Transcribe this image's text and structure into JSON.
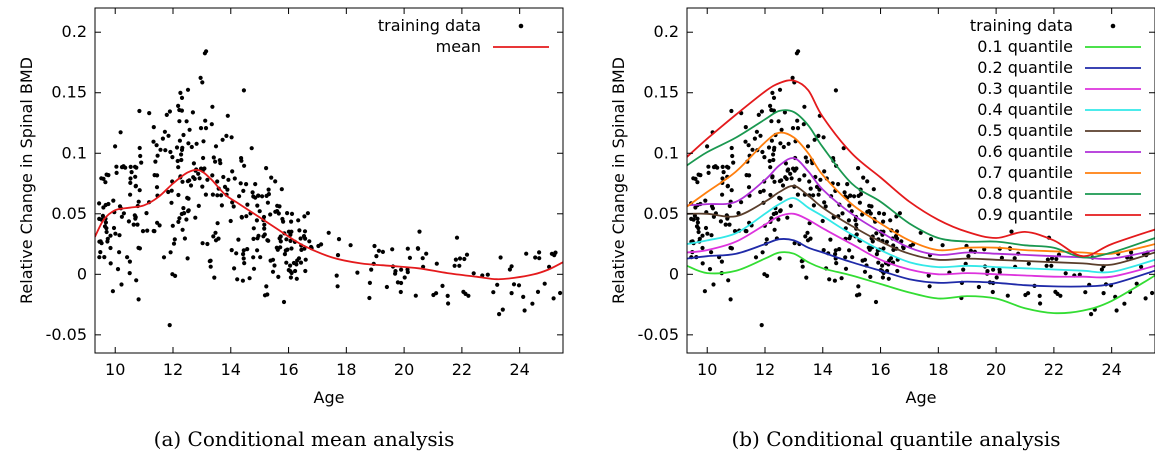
{
  "chart_data": [
    {
      "type": "scatter",
      "caption": "(a) Conditional mean analysis",
      "xlabel": "Age",
      "ylabel": "Relative Change in Spinal BMD",
      "xlim": [
        9.3,
        25.5
      ],
      "ylim": [
        -0.065,
        0.22
      ],
      "xticks": [
        10,
        12,
        14,
        16,
        18,
        20,
        22,
        24
      ],
      "yticks": [
        -0.05,
        0,
        0.05,
        0.1,
        0.15,
        0.2
      ],
      "yticklabels": [
        "-0.05",
        "0",
        "0.05",
        "0.1",
        "0.15",
        "0.2"
      ],
      "grid": false,
      "legend_position": "top-right",
      "scatter_name": "training data",
      "series": [
        {
          "name": "mean",
          "color": "#e41a1c",
          "x": [
            9.3,
            9.6,
            10.0,
            10.5,
            11.0,
            11.5,
            12.0,
            12.5,
            12.9,
            13.3,
            13.8,
            14.3,
            15.0,
            15.7,
            16.5,
            17.5,
            18.5,
            19.5,
            20.5,
            21.5,
            22.5,
            23.2,
            23.8,
            24.5,
            25.0,
            25.5
          ],
          "y": [
            0.031,
            0.045,
            0.053,
            0.055,
            0.057,
            0.064,
            0.075,
            0.084,
            0.086,
            0.079,
            0.066,
            0.058,
            0.047,
            0.036,
            0.024,
            0.014,
            0.009,
            0.007,
            0.005,
            0.001,
            -0.002,
            -0.004,
            -0.003,
            0.0,
            0.004,
            0.01
          ]
        }
      ]
    },
    {
      "type": "scatter",
      "caption": "(b) Conditional quantile analysis",
      "xlabel": "Age",
      "ylabel": "Relative Change in Spinal BMD",
      "xlim": [
        9.3,
        25.5
      ],
      "ylim": [
        -0.065,
        0.22
      ],
      "xticks": [
        10,
        12,
        14,
        16,
        18,
        20,
        22,
        24
      ],
      "yticks": [
        -0.05,
        0,
        0.05,
        0.1,
        0.15,
        0.2
      ],
      "yticklabels": [
        "-0.05",
        "0",
        "0.05",
        "0.1",
        "0.15",
        "0.2"
      ],
      "grid": false,
      "legend_position": "top-right",
      "scatter_name": "training data",
      "quantile_x": [
        9.3,
        10.0,
        11.0,
        12.0,
        12.5,
        13.0,
        13.5,
        14.0,
        15.0,
        16.0,
        17.0,
        18.0,
        19.0,
        20.0,
        21.0,
        22.0,
        23.0,
        24.0,
        25.5
      ],
      "series": [
        {
          "name": "0.1 quantile",
          "color": "#33dd33",
          "y": [
            0.007,
            0.001,
            0.003,
            0.013,
            0.018,
            0.017,
            0.01,
            0.005,
            -0.001,
            -0.008,
            -0.015,
            -0.02,
            -0.018,
            -0.02,
            -0.028,
            -0.032,
            -0.03,
            -0.022,
            -0.001
          ]
        },
        {
          "name": "0.2 quantile",
          "color": "#1f2aa8",
          "y": [
            0.013,
            0.015,
            0.017,
            0.025,
            0.029,
            0.028,
            0.022,
            0.018,
            0.01,
            0.003,
            -0.004,
            -0.007,
            -0.006,
            -0.007,
            -0.009,
            -0.01,
            -0.01,
            -0.008,
            0.003
          ]
        },
        {
          "name": "0.3 quantile",
          "color": "#dd33dd",
          "y": [
            0.018,
            0.02,
            0.027,
            0.041,
            0.048,
            0.05,
            0.045,
            0.038,
            0.025,
            0.012,
            0.004,
            0.0,
            0.001,
            0.0,
            -0.001,
            -0.002,
            -0.002,
            -0.002,
            0.007
          ]
        },
        {
          "name": "0.4 quantile",
          "color": "#33e8e8",
          "y": [
            0.025,
            0.028,
            0.034,
            0.05,
            0.058,
            0.063,
            0.055,
            0.048,
            0.033,
            0.02,
            0.01,
            0.006,
            0.007,
            0.006,
            0.005,
            0.004,
            0.003,
            0.002,
            0.012
          ]
        },
        {
          "name": "0.5 quantile",
          "color": "#5a3e2b",
          "y": [
            0.05,
            0.05,
            0.048,
            0.06,
            0.068,
            0.073,
            0.065,
            0.055,
            0.04,
            0.027,
            0.017,
            0.012,
            0.013,
            0.012,
            0.011,
            0.01,
            0.009,
            0.008,
            0.018
          ]
        },
        {
          "name": "0.6 quantile",
          "color": "#b030d8",
          "y": [
            0.057,
            0.058,
            0.06,
            0.078,
            0.09,
            0.096,
            0.085,
            0.07,
            0.05,
            0.035,
            0.022,
            0.016,
            0.018,
            0.017,
            0.016,
            0.015,
            0.014,
            0.013,
            0.02
          ]
        },
        {
          "name": "0.7 quantile",
          "color": "#ff7f0e",
          "y": [
            0.056,
            0.068,
            0.085,
            0.109,
            0.117,
            0.113,
            0.1,
            0.082,
            0.058,
            0.042,
            0.028,
            0.02,
            0.022,
            0.022,
            0.02,
            0.019,
            0.018,
            0.017,
            0.025
          ]
        },
        {
          "name": "0.8 quantile",
          "color": "#1a9850",
          "y": [
            0.09,
            0.101,
            0.113,
            0.128,
            0.135,
            0.134,
            0.123,
            0.105,
            0.075,
            0.06,
            0.042,
            0.03,
            0.027,
            0.027,
            0.024,
            0.022,
            0.014,
            0.018,
            0.03
          ]
        },
        {
          "name": "0.9 quantile",
          "color": "#e41a1c",
          "y": [
            0.097,
            0.112,
            0.132,
            0.151,
            0.158,
            0.16,
            0.152,
            0.13,
            0.1,
            0.08,
            0.06,
            0.045,
            0.035,
            0.03,
            0.035,
            0.028,
            0.015,
            0.025,
            0.037
          ]
        }
      ]
    }
  ]
}
